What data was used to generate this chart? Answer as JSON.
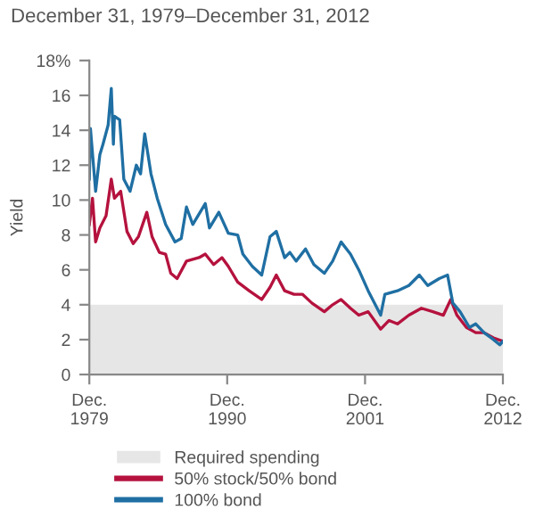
{
  "chart_data": {
    "type": "line",
    "title": "December 31, 1979–December 31, 2012",
    "ylabel": "Yield",
    "series": [
      {
        "name": "50% stock/50% bond",
        "color": "#b5123e",
        "x": [
          "1979-12-31",
          "1980-04",
          "1980-07",
          "1980-11",
          "1981-05",
          "1981-10",
          "1982-01",
          "1982-07",
          "1983-01",
          "1983-07",
          "1983-12",
          "1984-08",
          "1985-01",
          "1985-08",
          "1986-02",
          "1986-07",
          "1987-01",
          "1987-10",
          "1988-10",
          "1989-04",
          "1989-12",
          "1990-08",
          "1991-02",
          "1991-11",
          "1992-10",
          "1993-10",
          "1994-06",
          "1994-12",
          "1995-08",
          "1996-05",
          "1997-01",
          "1997-10",
          "1998-10",
          "1999-06",
          "2000-02",
          "2000-11",
          "2001-07",
          "2002-04",
          "2003-04",
          "2003-12",
          "2004-08",
          "2005-07",
          "2006-07",
          "2007-06",
          "2008-04",
          "2008-11",
          "2009-05",
          "2010-02",
          "2010-11",
          "2011-07",
          "2012-04",
          "2012-12-31"
        ],
        "values": [
          8.6,
          10.1,
          7.6,
          8.4,
          9.1,
          11.2,
          10.1,
          10.5,
          8.2,
          7.5,
          7.9,
          9.3,
          7.9,
          7.0,
          6.9,
          5.8,
          5.5,
          6.5,
          6.7,
          6.9,
          6.3,
          6.7,
          6.2,
          5.3,
          4.8,
          4.3,
          5.0,
          5.7,
          4.8,
          4.6,
          4.6,
          4.1,
          3.6,
          4.0,
          4.3,
          3.8,
          3.4,
          3.6,
          2.6,
          3.1,
          2.9,
          3.4,
          3.8,
          3.6,
          3.4,
          4.3,
          3.4,
          2.7,
          2.4,
          2.4,
          2.1,
          1.9
        ]
      },
      {
        "name": "100% bond",
        "color": "#1f6fa3",
        "x": [
          "1979-12-31",
          "1980-02",
          "1980-07",
          "1980-11",
          "1981-02",
          "1981-07",
          "1981-10",
          "1981-12",
          "1982-01",
          "1982-06",
          "1982-10",
          "1983-04",
          "1983-10",
          "1984-02",
          "1984-06",
          "1984-12",
          "1985-06",
          "1986-02",
          "1986-11",
          "1987-05",
          "1987-10",
          "1988-04",
          "1989-04",
          "1989-08",
          "1990-05",
          "1991-02",
          "1991-11",
          "1992-04",
          "1993-01",
          "1993-10",
          "1994-06",
          "1994-12",
          "1995-08",
          "1996-01",
          "1996-07",
          "1997-04",
          "1997-12",
          "1998-10",
          "1999-06",
          "2000-02",
          "2000-11",
          "2001-07",
          "2002-04",
          "2003-04",
          "2003-08",
          "2004-08",
          "2005-07",
          "2006-05",
          "2007-01",
          "2007-12",
          "2008-08",
          "2009-01",
          "2009-08",
          "2010-05",
          "2010-11",
          "2011-07",
          "2012-04",
          "2012-10",
          "2012-12-31"
        ],
        "values": [
          11.2,
          14.1,
          10.5,
          12.6,
          13.2,
          14.3,
          16.4,
          13.2,
          14.8,
          14.6,
          11.2,
          10.5,
          12.0,
          11.5,
          13.8,
          11.5,
          10.1,
          8.6,
          7.6,
          7.8,
          9.6,
          8.6,
          9.8,
          8.4,
          9.3,
          8.1,
          8.0,
          6.9,
          6.2,
          5.7,
          7.9,
          8.2,
          6.7,
          7.0,
          6.5,
          7.2,
          6.3,
          5.8,
          6.5,
          7.6,
          6.9,
          6.0,
          4.8,
          3.4,
          4.6,
          4.8,
          5.1,
          5.7,
          5.1,
          5.5,
          5.7,
          4.1,
          3.6,
          2.7,
          2.9,
          2.4,
          2.0,
          1.7,
          1.9
        ]
      }
    ],
    "bands": [
      {
        "axis": "y",
        "from": 0,
        "to": 4,
        "label": "Required spending",
        "color": "#e6e6e6"
      }
    ],
    "xlim": [
      "1979-12-31",
      "2012-12-31"
    ],
    "xticks": [
      {
        "value": "1979-12-31",
        "label": "Dec.\n1979"
      },
      {
        "value": "1990-12-31",
        "label": "Dec.\n1990"
      },
      {
        "value": "2001-12-31",
        "label": "Dec.\n2001"
      },
      {
        "value": "2012-12-31",
        "label": "Dec.\n2012"
      }
    ],
    "ylim": [
      0,
      18
    ],
    "yticks": [
      0,
      2,
      4,
      6,
      8,
      10,
      12,
      14,
      16,
      {
        "value": 18,
        "label": "18%"
      }
    ],
    "grid": false,
    "legend": "bottom",
    "marker": "none",
    "line_style": "solid"
  }
}
